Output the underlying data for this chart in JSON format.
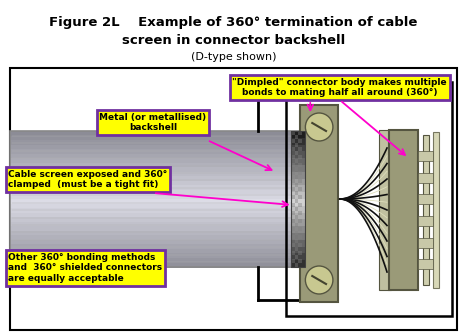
{
  "title_line1": "Figure 2L    Example of 360° termination of cable",
  "title_line2": "screen in connector backshell",
  "title_suffix": "(D-type shown)",
  "bg_color": "#ffffff",
  "ann1_text": "\"Dimpled\" connector body makes multiple\nbonds to mating half all around (360°)",
  "ann2_text": "Metal (or metallised)\nbackshell",
  "ann3_text": "Cable screen exposed and 360°\nclamped  (must be a tight fit)",
  "ann4_text": "Other 360° bonding methods\nand  360° shielded connectors\nare equally acceptable",
  "yellow_box": "#ffff00",
  "purple_border": "#7030a0",
  "magenta_arrow": "#ff00cc",
  "black_outline": "#000000"
}
